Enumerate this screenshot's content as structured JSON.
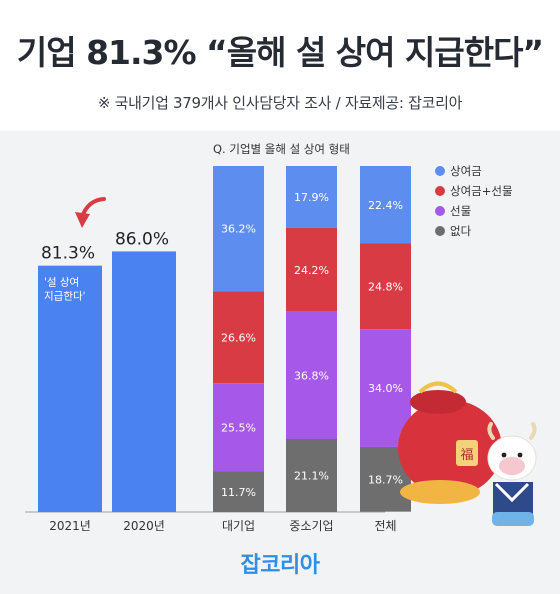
{
  "header": {
    "title": "기업 81.3% “올해 설 상여 지급한다”",
    "subtitle": "※ 국내기업 379개사 인사담당자 조사 / 자료제공: 잡코리아"
  },
  "brand": "잡코리아",
  "colors": {
    "bonus": "#5c8def",
    "bonus_gift": "#d93b44",
    "gift": "#a659e8",
    "none": "#6e6e6e",
    "year_bar": "#4a82f2"
  },
  "chart_data": [
    {
      "type": "bar",
      "categories": [
        "2021년",
        "2020년"
      ],
      "values": [
        81.3,
        86.0
      ],
      "value_labels": [
        "81.3%",
        "86.0%"
      ],
      "annotation": "'설 상여\n지급한다'",
      "ylim": [
        0,
        100
      ]
    },
    {
      "type": "bar",
      "stacked": true,
      "title": "Q. 기업별 올해 설 상여 형태",
      "categories": [
        "대기업",
        "중소기업",
        "전체"
      ],
      "series": [
        {
          "name": "상여금",
          "color": "#5c8def",
          "values": [
            36.2,
            17.9,
            22.4
          ],
          "labels": [
            "36.2%",
            "17.9%",
            "22.4%"
          ]
        },
        {
          "name": "상여금+선물",
          "color": "#d93b44",
          "values": [
            26.6,
            24.2,
            24.8
          ],
          "labels": [
            "26.6%",
            "24.2%",
            "24.8%"
          ]
        },
        {
          "name": "선물",
          "color": "#a659e8",
          "values": [
            25.5,
            36.8,
            34.0
          ],
          "labels": [
            "25.5%",
            "36.8%",
            "34.0%"
          ]
        },
        {
          "name": "없다",
          "color": "#6e6e6e",
          "values": [
            11.7,
            21.1,
            18.7
          ],
          "labels": [
            "11.7%",
            "21.1%",
            "18.7%"
          ]
        }
      ],
      "legend": "top-right"
    }
  ]
}
